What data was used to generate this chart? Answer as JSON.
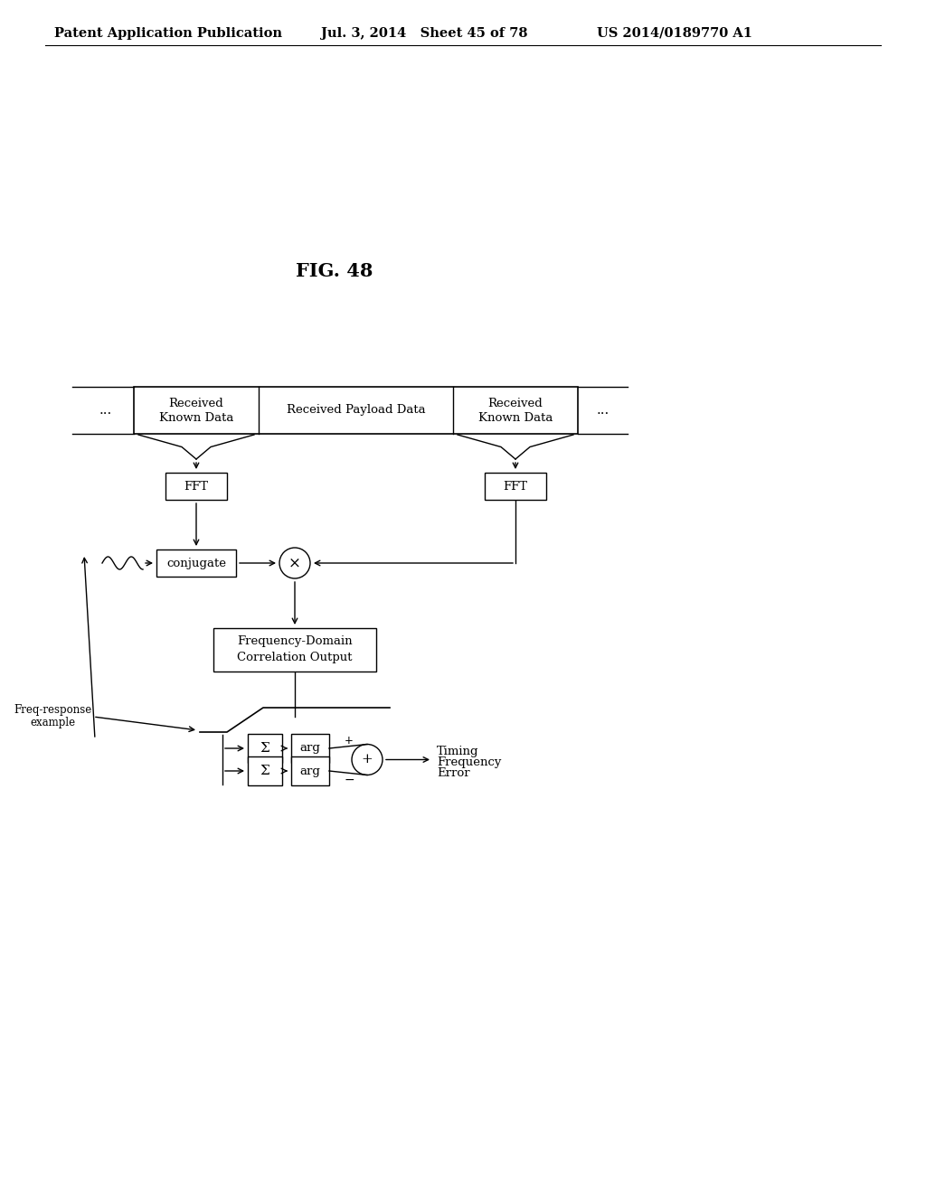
{
  "title": "FIG. 48",
  "header_left": "Patent Application Publication",
  "header_mid": "Jul. 3, 2014   Sheet 45 of 78",
  "header_right": "US 2014/0189770 A1",
  "bg_color": "#ffffff",
  "text_color": "#000000",
  "box_color": "#000000",
  "box_fill": "#ffffff",
  "font_size_header": 10.5,
  "font_size_title": 15,
  "font_size_body": 9.5,
  "font_size_small": 8.5
}
